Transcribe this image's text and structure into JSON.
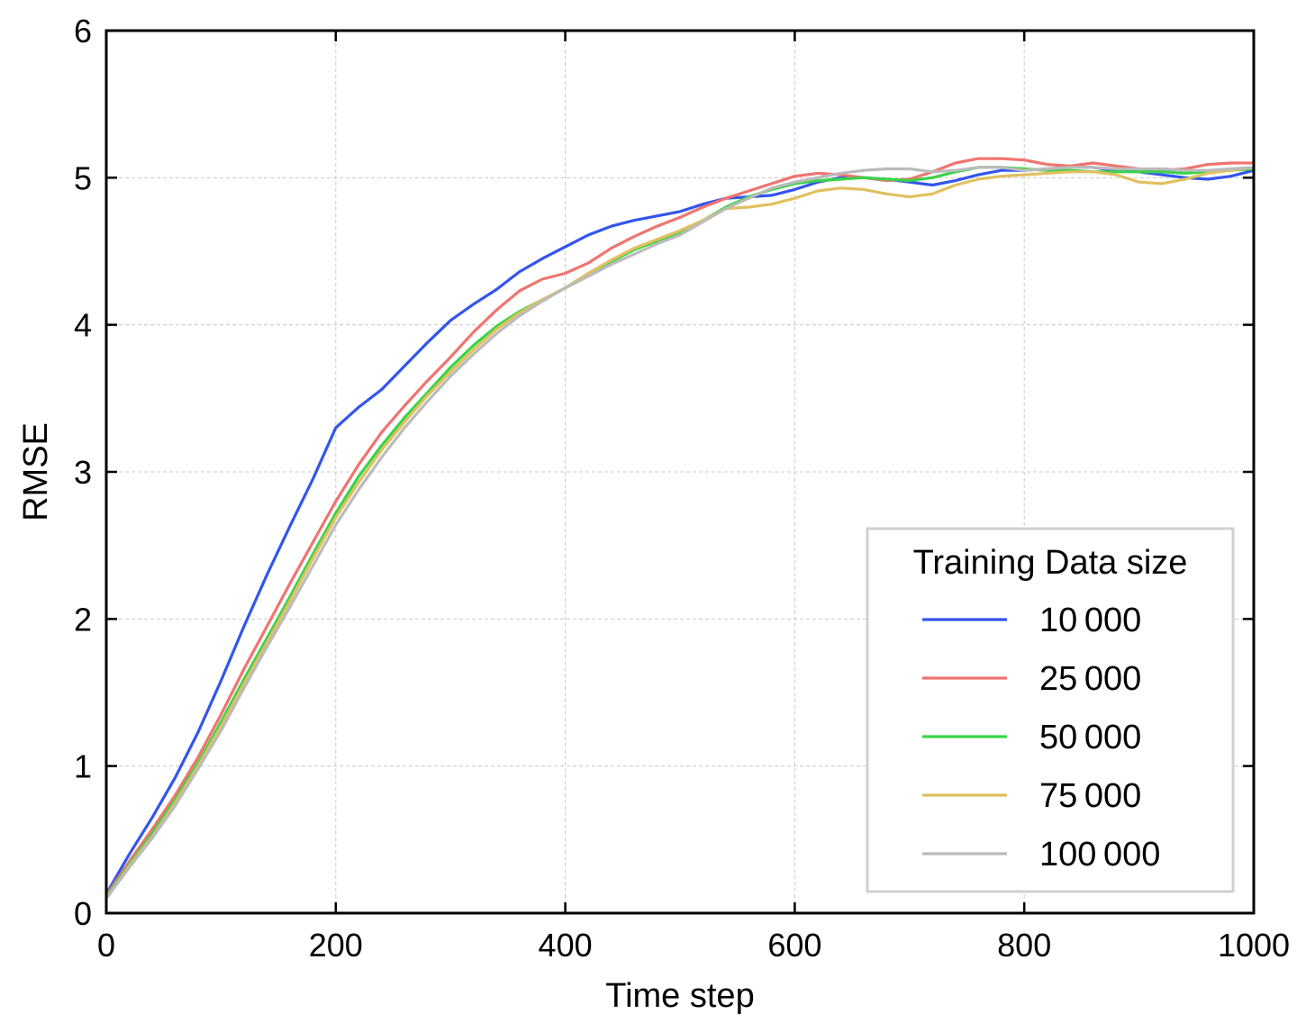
{
  "chart_data": {
    "type": "line",
    "title": "",
    "xlabel": "Time step",
    "ylabel": "RMSE",
    "xlim": [
      0,
      1000
    ],
    "ylim": [
      0,
      6
    ],
    "xticks": [
      0,
      200,
      400,
      600,
      800,
      1000
    ],
    "yticks": [
      0,
      1,
      2,
      3,
      4,
      5,
      6
    ],
    "xtick_labels": [
      "0",
      "200",
      "400",
      "600",
      "800",
      "1000"
    ],
    "ytick_labels": [
      "0",
      "1",
      "2",
      "3",
      "4",
      "5",
      "6"
    ],
    "grid": true,
    "legend": {
      "title": "Training Data size",
      "placement": "bottom-right"
    },
    "x": [
      0,
      20,
      40,
      60,
      80,
      100,
      120,
      140,
      160,
      180,
      200,
      220,
      240,
      260,
      280,
      300,
      320,
      340,
      360,
      380,
      400,
      420,
      440,
      460,
      480,
      500,
      520,
      540,
      560,
      580,
      600,
      620,
      640,
      660,
      680,
      700,
      720,
      740,
      760,
      780,
      800,
      820,
      840,
      860,
      880,
      900,
      920,
      940,
      960,
      980,
      1000
    ],
    "series": [
      {
        "name": "10 000",
        "color": "#3355ee",
        "values": [
          0.13,
          0.4,
          0.65,
          0.92,
          1.23,
          1.58,
          1.95,
          2.3,
          2.63,
          2.95,
          3.3,
          3.44,
          3.56,
          3.72,
          3.88,
          4.03,
          4.14,
          4.24,
          4.36,
          4.45,
          4.53,
          4.61,
          4.67,
          4.71,
          4.74,
          4.77,
          4.82,
          4.86,
          4.87,
          4.88,
          4.92,
          4.97,
          5.0,
          5.0,
          4.99,
          4.97,
          4.95,
          4.98,
          5.02,
          5.05,
          5.05,
          5.06,
          5.07,
          5.07,
          5.05,
          5.04,
          5.02,
          5.0,
          4.99,
          5.01,
          5.05
        ]
      },
      {
        "name": "25 000",
        "color": "#f07470",
        "values": [
          0.12,
          0.35,
          0.57,
          0.8,
          1.06,
          1.35,
          1.66,
          1.95,
          2.24,
          2.52,
          2.8,
          3.05,
          3.27,
          3.45,
          3.62,
          3.78,
          3.95,
          4.1,
          4.23,
          4.31,
          4.35,
          4.42,
          4.52,
          4.6,
          4.67,
          4.73,
          4.8,
          4.86,
          4.91,
          4.96,
          5.01,
          5.03,
          5.02,
          5.0,
          4.98,
          4.99,
          5.04,
          5.1,
          5.13,
          5.13,
          5.12,
          5.09,
          5.08,
          5.1,
          5.08,
          5.06,
          5.05,
          5.06,
          5.09,
          5.1,
          5.1
        ]
      },
      {
        "name": "50 000",
        "color": "#3ad44a",
        "values": [
          0.11,
          0.33,
          0.54,
          0.77,
          1.02,
          1.3,
          1.59,
          1.87,
          2.15,
          2.44,
          2.72,
          2.97,
          3.18,
          3.37,
          3.54,
          3.71,
          3.86,
          3.99,
          4.09,
          4.17,
          4.25,
          4.34,
          4.43,
          4.51,
          4.57,
          4.63,
          4.71,
          4.8,
          4.87,
          4.92,
          4.96,
          4.98,
          4.99,
          5.0,
          4.99,
          4.98,
          5.0,
          5.04,
          5.07,
          5.07,
          5.06,
          5.05,
          5.05,
          5.04,
          5.04,
          5.04,
          5.04,
          5.03,
          5.04,
          5.05,
          5.06
        ]
      },
      {
        "name": "75 000",
        "color": "#e0c060",
        "values": [
          0.1,
          0.32,
          0.52,
          0.75,
          1.0,
          1.27,
          1.56,
          1.84,
          2.12,
          2.41,
          2.69,
          2.93,
          3.15,
          3.34,
          3.52,
          3.68,
          3.83,
          3.97,
          4.08,
          4.17,
          4.25,
          4.35,
          4.44,
          4.52,
          4.58,
          4.64,
          4.71,
          4.79,
          4.8,
          4.82,
          4.86,
          4.91,
          4.93,
          4.92,
          4.89,
          4.87,
          4.89,
          4.95,
          4.99,
          5.01,
          5.02,
          5.03,
          5.04,
          5.04,
          5.02,
          4.97,
          4.96,
          4.99,
          5.03,
          5.05,
          5.07
        ]
      },
      {
        "name": "100 000",
        "color": "#bbbbbb",
        "values": [
          0.1,
          0.31,
          0.51,
          0.73,
          0.98,
          1.24,
          1.53,
          1.81,
          2.08,
          2.36,
          2.64,
          2.88,
          3.1,
          3.3,
          3.48,
          3.65,
          3.8,
          3.94,
          4.06,
          4.16,
          4.25,
          4.33,
          4.41,
          4.48,
          4.55,
          4.61,
          4.7,
          4.79,
          4.86,
          4.93,
          4.97,
          5.0,
          5.03,
          5.05,
          5.06,
          5.06,
          5.04,
          5.05,
          5.07,
          5.07,
          5.05,
          5.06,
          5.07,
          5.07,
          5.06,
          5.06,
          5.06,
          5.05,
          5.05,
          5.06,
          5.07
        ]
      }
    ]
  }
}
